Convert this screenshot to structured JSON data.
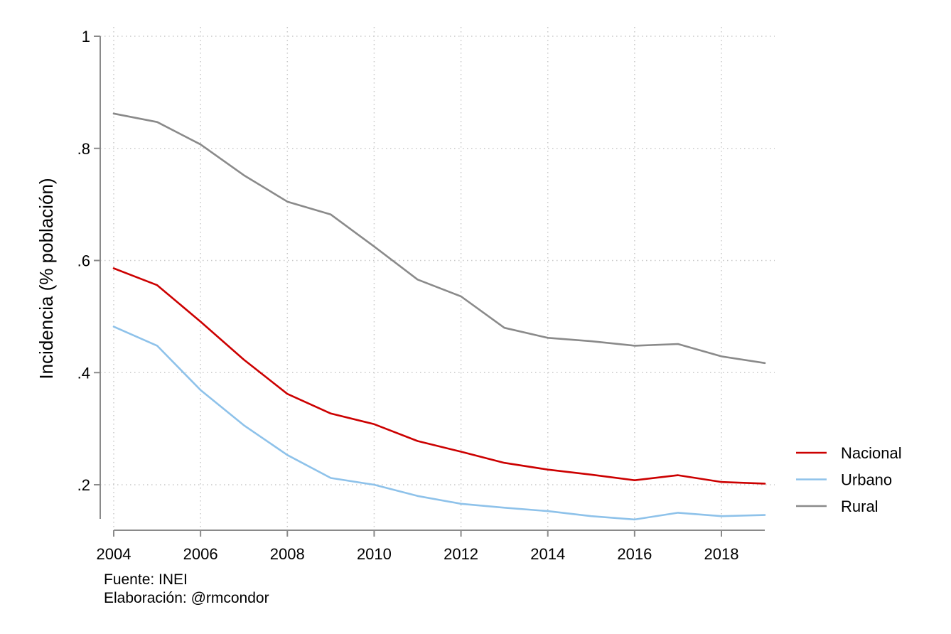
{
  "chart_data": {
    "type": "line",
    "title": "",
    "xlabel": "",
    "ylabel": "Incidencia (% población)",
    "x": [
      2004,
      2005,
      2006,
      2007,
      2008,
      2009,
      2010,
      2011,
      2012,
      2013,
      2014,
      2015,
      2016,
      2017,
      2018,
      2019
    ],
    "xticks": [
      2004,
      2006,
      2008,
      2010,
      2012,
      2014,
      2016,
      2018
    ],
    "xtick_labels": [
      "2004",
      "2006",
      "2008",
      "2010",
      "2012",
      "2014",
      "2016",
      "2018"
    ],
    "yticks": [
      0.2,
      0.4,
      0.6,
      0.8,
      1.0
    ],
    "ytick_labels": [
      ".2",
      ".4",
      ".6",
      ".8",
      "1"
    ],
    "xlim": [
      2004,
      2019
    ],
    "ylim": [
      0.12,
      1.0
    ],
    "grid": true,
    "legend_position": "right",
    "series": [
      {
        "name": "Nacional",
        "color": "#cc0000",
        "values": [
          0.586,
          0.556,
          0.491,
          0.423,
          0.362,
          0.327,
          0.308,
          0.278,
          0.259,
          0.239,
          0.227,
          0.218,
          0.208,
          0.217,
          0.205,
          0.202
        ]
      },
      {
        "name": "Urbano",
        "color": "#8ec2ea",
        "values": [
          0.482,
          0.448,
          0.369,
          0.306,
          0.253,
          0.212,
          0.2,
          0.18,
          0.166,
          0.159,
          0.153,
          0.144,
          0.138,
          0.15,
          0.144,
          0.146
        ]
      },
      {
        "name": "Rural",
        "color": "#8a8a8a",
        "values": [
          0.862,
          0.847,
          0.807,
          0.752,
          0.705,
          0.682,
          0.625,
          0.566,
          0.536,
          0.48,
          0.462,
          0.456,
          0.448,
          0.451,
          0.429,
          0.417
        ]
      }
    ]
  },
  "notes": {
    "source": "Fuente: INEI",
    "author": "Elaboración: @rmcondor"
  }
}
